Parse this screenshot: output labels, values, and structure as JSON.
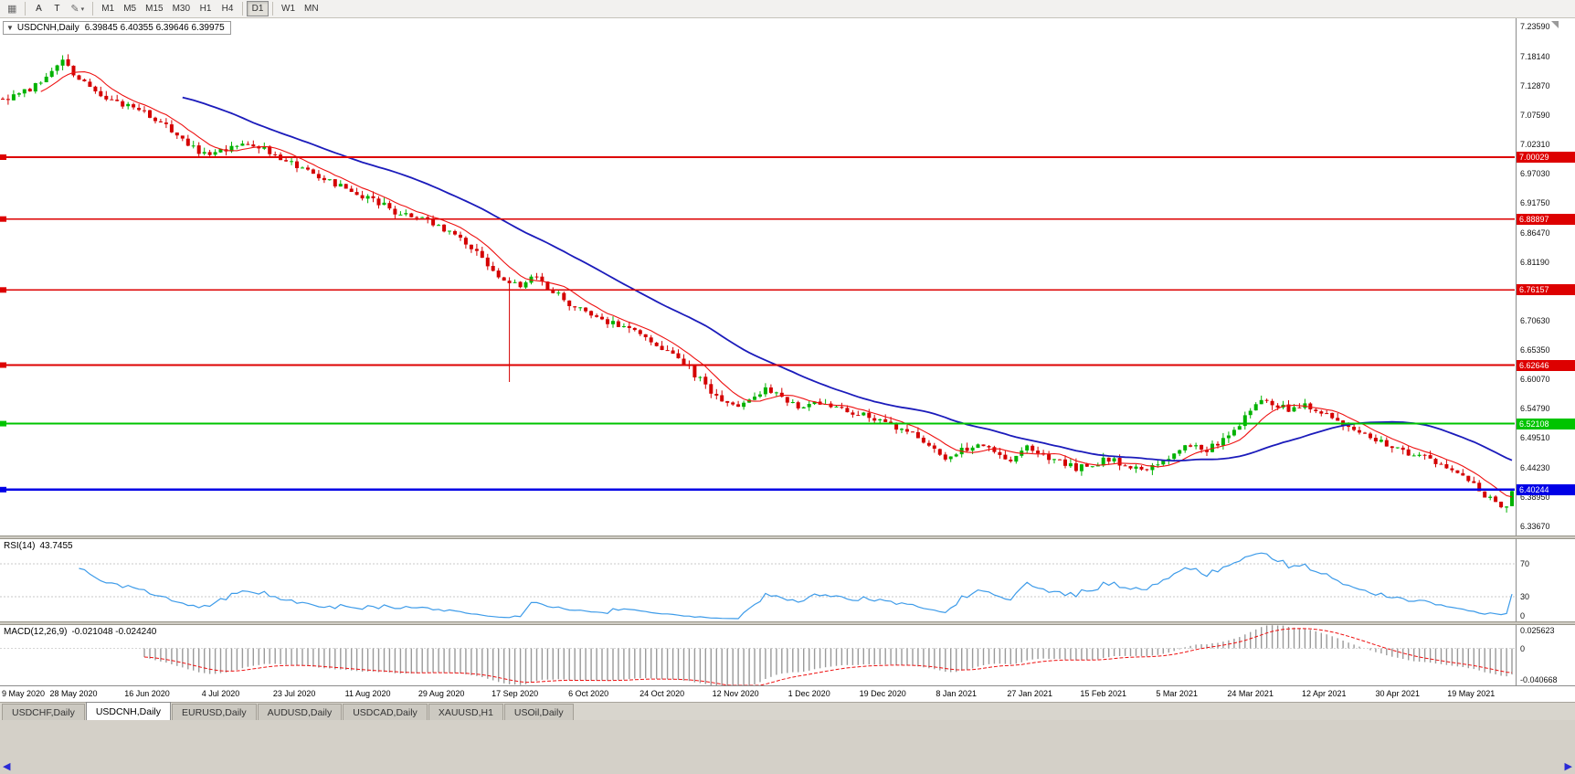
{
  "toolbar": {
    "chart_icon": "▦",
    "cursor_label": "A",
    "text_label": "T",
    "draw_icon": "✎",
    "caret_icon": "▾",
    "timeframes": [
      "M1",
      "M5",
      "M15",
      "M30",
      "H1",
      "H4",
      "D1",
      "W1",
      "MN"
    ],
    "active_timeframe": "D1"
  },
  "title_bar": {
    "collapse_icon": "▼",
    "symbol_period": "USDCNH,Daily",
    "ohlc": "6.39845 6.40355 6.39646 6.39975"
  },
  "colors": {
    "up": "#00b200",
    "down": "#d40000",
    "background": "#ffffff"
  },
  "chart_data": {
    "type": "candlestick",
    "symbol": "USDCNH",
    "timeframe": "Daily",
    "bars": 278,
    "ohlc_readout": {
      "open": "6.39845",
      "high": "6.40355",
      "low": "6.39646",
      "close": "6.39975"
    },
    "close_anchors": [
      [
        0,
        7.105
      ],
      [
        3,
        7.115
      ],
      [
        6,
        7.128
      ],
      [
        9,
        7.16
      ],
      [
        11,
        7.172
      ],
      [
        13,
        7.148
      ],
      [
        16,
        7.122
      ],
      [
        20,
        7.1
      ],
      [
        24,
        7.088
      ],
      [
        27,
        7.076
      ],
      [
        30,
        7.058
      ],
      [
        33,
        7.035
      ],
      [
        36,
        7.01
      ],
      [
        39,
        7.006
      ],
      [
        42,
        7.02
      ],
      [
        45,
        7.028
      ],
      [
        48,
        7.014
      ],
      [
        51,
        7.0
      ],
      [
        54,
        6.982
      ],
      [
        57,
        6.968
      ],
      [
        60,
        6.955
      ],
      [
        63,
        6.944
      ],
      [
        66,
        6.932
      ],
      [
        69,
        6.918
      ],
      [
        72,
        6.902
      ],
      [
        75,
        6.894
      ],
      [
        78,
        6.888
      ],
      [
        81,
        6.87
      ],
      [
        84,
        6.852
      ],
      [
        87,
        6.826
      ],
      [
        90,
        6.796
      ],
      [
        93,
        6.778
      ],
      [
        95,
        6.772
      ],
      [
        98,
        6.786
      ],
      [
        101,
        6.76
      ],
      [
        104,
        6.738
      ],
      [
        107,
        6.72
      ],
      [
        110,
        6.708
      ],
      [
        113,
        6.697
      ],
      [
        116,
        6.684
      ],
      [
        119,
        6.668
      ],
      [
        122,
        6.652
      ],
      [
        125,
        6.63
      ],
      [
        128,
        6.6
      ],
      [
        131,
        6.57
      ],
      [
        134,
        6.552
      ],
      [
        137,
        6.568
      ],
      [
        140,
        6.584
      ],
      [
        143,
        6.568
      ],
      [
        146,
        6.553
      ],
      [
        149,
        6.56
      ],
      [
        152,
        6.552
      ],
      [
        155,
        6.545
      ],
      [
        158,
        6.538
      ],
      [
        161,
        6.528
      ],
      [
        164,
        6.515
      ],
      [
        167,
        6.5
      ],
      [
        170,
        6.478
      ],
      [
        173,
        6.462
      ],
      [
        176,
        6.472
      ],
      [
        179,
        6.482
      ],
      [
        182,
        6.47
      ],
      [
        185,
        6.458
      ],
      [
        188,
        6.478
      ],
      [
        191,
        6.466
      ],
      [
        194,
        6.452
      ],
      [
        197,
        6.442
      ],
      [
        200,
        6.448
      ],
      [
        203,
        6.458
      ],
      [
        206,
        6.446
      ],
      [
        209,
        6.436
      ],
      [
        212,
        6.452
      ],
      [
        215,
        6.468
      ],
      [
        218,
        6.482
      ],
      [
        221,
        6.474
      ],
      [
        224,
        6.492
      ],
      [
        227,
        6.52
      ],
      [
        229,
        6.548
      ],
      [
        231,
        6.568
      ],
      [
        233,
        6.558
      ],
      [
        236,
        6.548
      ],
      [
        239,
        6.552
      ],
      [
        242,
        6.54
      ],
      [
        245,
        6.524
      ],
      [
        248,
        6.508
      ],
      [
        251,
        6.494
      ],
      [
        254,
        6.486
      ],
      [
        257,
        6.472
      ],
      [
        260,
        6.465
      ],
      [
        263,
        6.452
      ],
      [
        266,
        6.438
      ],
      [
        269,
        6.42
      ],
      [
        271,
        6.404
      ],
      [
        273,
        6.384
      ],
      [
        275,
        6.366
      ],
      [
        276,
        6.374
      ],
      [
        277,
        6.3998
      ]
    ],
    "special_bars": [
      {
        "index": 93,
        "low": 6.596
      }
    ],
    "ma_fast": {
      "period": 8,
      "color": "#ee1111"
    },
    "ma_slow": {
      "period": 34,
      "color": "#1b1bbb"
    },
    "levels": [
      {
        "price": 7.00029,
        "tag": "7.00029",
        "color": "#dd0000",
        "width": 1.6
      },
      {
        "price": 6.88897,
        "tag": "6.88897",
        "color": "#dd0000",
        "width": 1.6
      },
      {
        "price": 6.76157,
        "tag": "6.76157",
        "color": "#dd0000",
        "width": 1.6
      },
      {
        "price": 6.62646,
        "tag": "6.62646",
        "color": "#dd0000",
        "width": 1.6
      },
      {
        "price": 6.52108,
        "tag": "6.52108",
        "color": "#00c400",
        "width": 2.2
      },
      {
        "price": 6.40244,
        "tag": "6.40244",
        "color": "#0000e6",
        "width": 2.6
      }
    ],
    "price_scale": {
      "min": 6.32,
      "max": 7.25,
      "ticks": [
        "7.23590",
        "7.18140",
        "7.12870",
        "7.07590",
        "7.02310",
        "6.97030",
        "6.91750",
        "6.86470",
        "6.81190",
        "6.75910",
        "6.70630",
        "6.65350",
        "6.60070",
        "6.54790",
        "6.49510",
        "6.44230",
        "6.38950",
        "6.33670"
      ]
    },
    "x_labels": [
      "9 May 2020",
      "28 May 2020",
      "16 Jun 2020",
      "4 Jul 2020",
      "23 Jul 2020",
      "11 Aug 2020",
      "29 Aug 2020",
      "17 Sep 2020",
      "6 Oct 2020",
      "24 Oct 2020",
      "12 Nov 2020",
      "1 Dec 2020",
      "19 Dec 2020",
      "8 Jan 2021",
      "27 Jan 2021",
      "15 Feb 2021",
      "5 Mar 2021",
      "24 Mar 2021",
      "12 Apr 2021",
      "30 Apr 2021",
      "19 May 2021"
    ],
    "label_step_bars": 13.5,
    "rsi": {
      "name": "RSI(14)",
      "value": "43.7455",
      "period": 14,
      "color": "#3d9be9",
      "ticks": [
        {
          "label": "70",
          "value": 70
        },
        {
          "label": "30",
          "value": 30
        },
        {
          "label": "0",
          "value": 0
        }
      ]
    },
    "macd": {
      "name": "MACD(12,26,9)",
      "values": "-0.021048 -0.024240",
      "fast": 12,
      "slow": 26,
      "signal": 9,
      "hist_color": "#9a9a9a",
      "signal_color": "#ee1111",
      "min": -0.040668,
      "max": 0.025623,
      "ticks": [
        {
          "label": "0.025623",
          "value": 0.025623
        },
        {
          "label": "0",
          "value": 0
        },
        {
          "label": "-0.040668",
          "value": -0.040668
        }
      ]
    }
  },
  "tabs": [
    {
      "label": "USDCHF,Daily",
      "active": false
    },
    {
      "label": "USDCNH,Daily",
      "active": true
    },
    {
      "label": "EURUSD,Daily",
      "active": false
    },
    {
      "label": "AUDUSD,Daily",
      "active": false
    },
    {
      "label": "USDCAD,Daily",
      "active": false
    },
    {
      "label": "XAUUSD,H1",
      "active": false
    },
    {
      "label": "USOil,Daily",
      "active": false
    }
  ],
  "bottom": {
    "left_arrow": "◀",
    "right_arrow": "▶"
  }
}
